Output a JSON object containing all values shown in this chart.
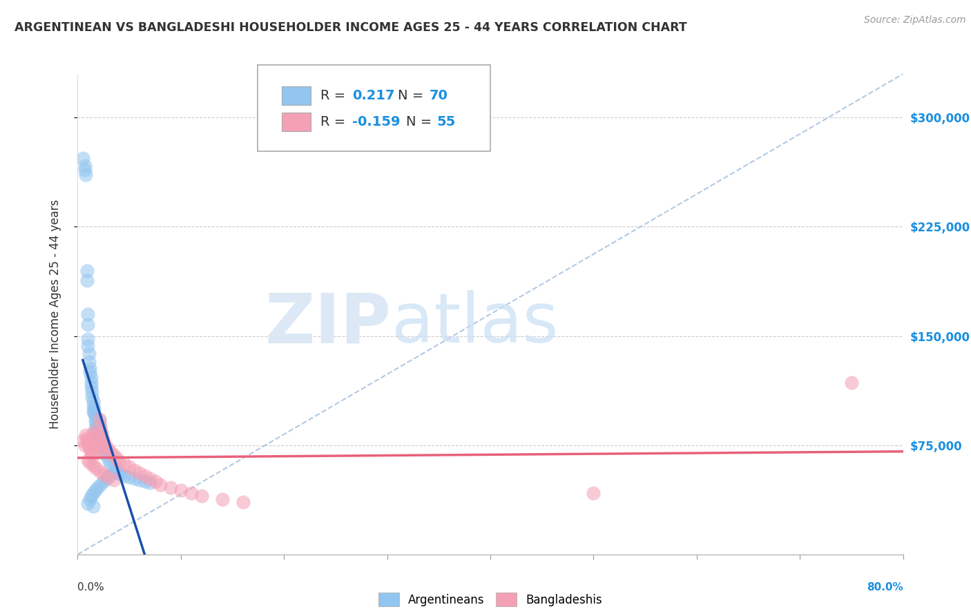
{
  "title": "ARGENTINEAN VS BANGLADESHI HOUSEHOLDER INCOME AGES 25 - 44 YEARS CORRELATION CHART",
  "source": "Source: ZipAtlas.com",
  "ylabel": "Householder Income Ages 25 - 44 years",
  "ytick_labels": [
    "$75,000",
    "$150,000",
    "$225,000",
    "$300,000"
  ],
  "ytick_values": [
    75000,
    150000,
    225000,
    300000
  ],
  "ymin": 0,
  "ymax": 330000,
  "xmin": 0.0,
  "xmax": 0.8,
  "legend_blue_label": "Argentineans",
  "legend_pink_label": "Bangladeshis",
  "R_blue": "0.217",
  "N_blue": "70",
  "R_pink": "-0.159",
  "N_pink": "55",
  "blue_color": "#92c5f0",
  "pink_color": "#f4a0b5",
  "blue_line_color": "#1a4faa",
  "pink_line_color": "#e8607a",
  "diag_color": "#aac4e0",
  "watermark_zip": "ZIP",
  "watermark_atlas": "atlas",
  "blue_scatter_x": [
    0.005,
    0.007,
    0.007,
    0.008,
    0.009,
    0.009,
    0.01,
    0.01,
    0.01,
    0.01,
    0.011,
    0.011,
    0.012,
    0.012,
    0.013,
    0.013,
    0.013,
    0.014,
    0.014,
    0.015,
    0.015,
    0.015,
    0.016,
    0.016,
    0.017,
    0.017,
    0.018,
    0.018,
    0.018,
    0.019,
    0.019,
    0.02,
    0.02,
    0.02,
    0.021,
    0.021,
    0.022,
    0.022,
    0.023,
    0.023,
    0.024,
    0.025,
    0.025,
    0.026,
    0.027,
    0.028,
    0.03,
    0.032,
    0.035,
    0.038,
    0.04,
    0.042,
    0.045,
    0.05,
    0.055,
    0.06,
    0.065,
    0.07,
    0.01,
    0.012,
    0.013,
    0.015,
    0.017,
    0.019,
    0.022,
    0.025,
    0.028,
    0.03,
    0.035,
    0.015
  ],
  "blue_scatter_y": [
    272000,
    267000,
    264000,
    261000,
    195000,
    188000,
    165000,
    158000,
    148000,
    143000,
    138000,
    132000,
    128000,
    125000,
    122000,
    118000,
    115000,
    112000,
    108000,
    105000,
    102000,
    98000,
    100000,
    97000,
    95000,
    92000,
    90000,
    88000,
    86000,
    84000,
    82000,
    80000,
    78000,
    76000,
    92000,
    89000,
    86000,
    84000,
    82000,
    80000,
    78000,
    76000,
    74000,
    72000,
    70000,
    68000,
    65000,
    62000,
    60000,
    58000,
    56000,
    55000,
    54000,
    53000,
    52000,
    51000,
    50000,
    49000,
    35000,
    38000,
    40000,
    42000,
    44000,
    46000,
    48000,
    50000,
    52000,
    54000,
    56000,
    33000
  ],
  "pink_scatter_x": [
    0.005,
    0.007,
    0.008,
    0.009,
    0.01,
    0.01,
    0.011,
    0.012,
    0.013,
    0.013,
    0.014,
    0.015,
    0.015,
    0.016,
    0.017,
    0.018,
    0.019,
    0.02,
    0.02,
    0.021,
    0.022,
    0.023,
    0.024,
    0.025,
    0.026,
    0.028,
    0.03,
    0.032,
    0.035,
    0.038,
    0.04,
    0.045,
    0.05,
    0.055,
    0.06,
    0.065,
    0.07,
    0.075,
    0.08,
    0.09,
    0.1,
    0.11,
    0.12,
    0.14,
    0.16,
    0.01,
    0.012,
    0.015,
    0.018,
    0.022,
    0.025,
    0.03,
    0.035,
    0.75,
    0.5
  ],
  "pink_scatter_y": [
    78000,
    75000,
    82000,
    80000,
    78000,
    76000,
    75000,
    73000,
    71000,
    70000,
    68000,
    84000,
    82000,
    80000,
    78000,
    76000,
    74000,
    72000,
    70000,
    93000,
    88000,
    84000,
    80000,
    78000,
    76000,
    74000,
    72000,
    70000,
    68000,
    66000,
    64000,
    62000,
    60000,
    58000,
    56000,
    54000,
    52000,
    50000,
    48000,
    46000,
    44000,
    42000,
    40000,
    38000,
    36000,
    65000,
    63000,
    61000,
    59000,
    57000,
    55000,
    53000,
    51000,
    118000,
    42000
  ]
}
